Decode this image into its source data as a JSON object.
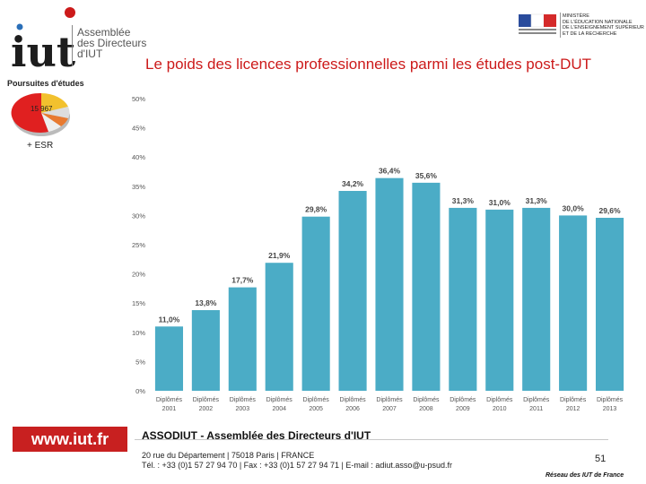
{
  "logo": {
    "letters": "iut",
    "line1": "Assemblée",
    "line2": "des Directeurs",
    "line3": "d'IUT"
  },
  "ministry": {
    "line1": "MINISTÈRE",
    "line2": "DE L'ÉDUCATION NATIONALE",
    "line3": "DE L'ENSEIGNEMENT SUPÉRIEUR",
    "line4": "ET DE LA RECHERCHE"
  },
  "page_title": "Le poids des licences professionnelles parmi les études post-DUT",
  "inset": {
    "label": "Poursuites d'études",
    "value": "15 967",
    "caption": "+ ESR"
  },
  "chart_data": {
    "type": "bar",
    "title": "Le poids des licences professionnelles parmi les études post-DUT",
    "categories": [
      [
        "Diplômés",
        "2001"
      ],
      [
        "Diplômés",
        "2002"
      ],
      [
        "Diplômés",
        "2003"
      ],
      [
        "Diplômés",
        "2004"
      ],
      [
        "Diplômés",
        "2005"
      ],
      [
        "Diplômés",
        "2006"
      ],
      [
        "Diplômés",
        "2007"
      ],
      [
        "Diplômés",
        "2008"
      ],
      [
        "Diplômés",
        "2009"
      ],
      [
        "Diplômés",
        "2010"
      ],
      [
        "Diplômés",
        "2011"
      ],
      [
        "Diplômés",
        "2012"
      ],
      [
        "Diplômés",
        "2013"
      ]
    ],
    "values": [
      11.0,
      13.8,
      17.7,
      21.9,
      29.8,
      34.2,
      36.4,
      35.6,
      31.3,
      31.0,
      31.3,
      30.0,
      29.6
    ],
    "labels": [
      "11,0%",
      "13,8%",
      "17,7%",
      "21,9%",
      "29,8%",
      "34,2%",
      "36,4%",
      "35,6%",
      "31,3%",
      "31,0%",
      "31,3%",
      "30,0%",
      "29,6%"
    ],
    "yticks": [
      0,
      5,
      10,
      15,
      20,
      25,
      30,
      35,
      40,
      45,
      50
    ],
    "ytick_labels": [
      "0%",
      "5%",
      "10%",
      "15%",
      "20%",
      "25%",
      "30%",
      "35%",
      "40%",
      "45%",
      "50%"
    ],
    "ylim": [
      0,
      50
    ],
    "xlabel": "",
    "ylabel": "",
    "grid": false,
    "bar_color": "#4bacc6"
  },
  "footer": {
    "url": "www.iut.fr",
    "assoc": "ASSODIUT - Assemblée des Directeurs d'IUT",
    "address_line1": "20 rue du Département | 75018 Paris | FRANCE",
    "address_line2": "Tél. : +33 (0)1 57 27 94 70 | Fax : +33 (0)1 57 27 94 71 | E-mail : adiut.asso@u-psud.fr",
    "page_number": "51",
    "network": "Réseau des IUT de France"
  }
}
